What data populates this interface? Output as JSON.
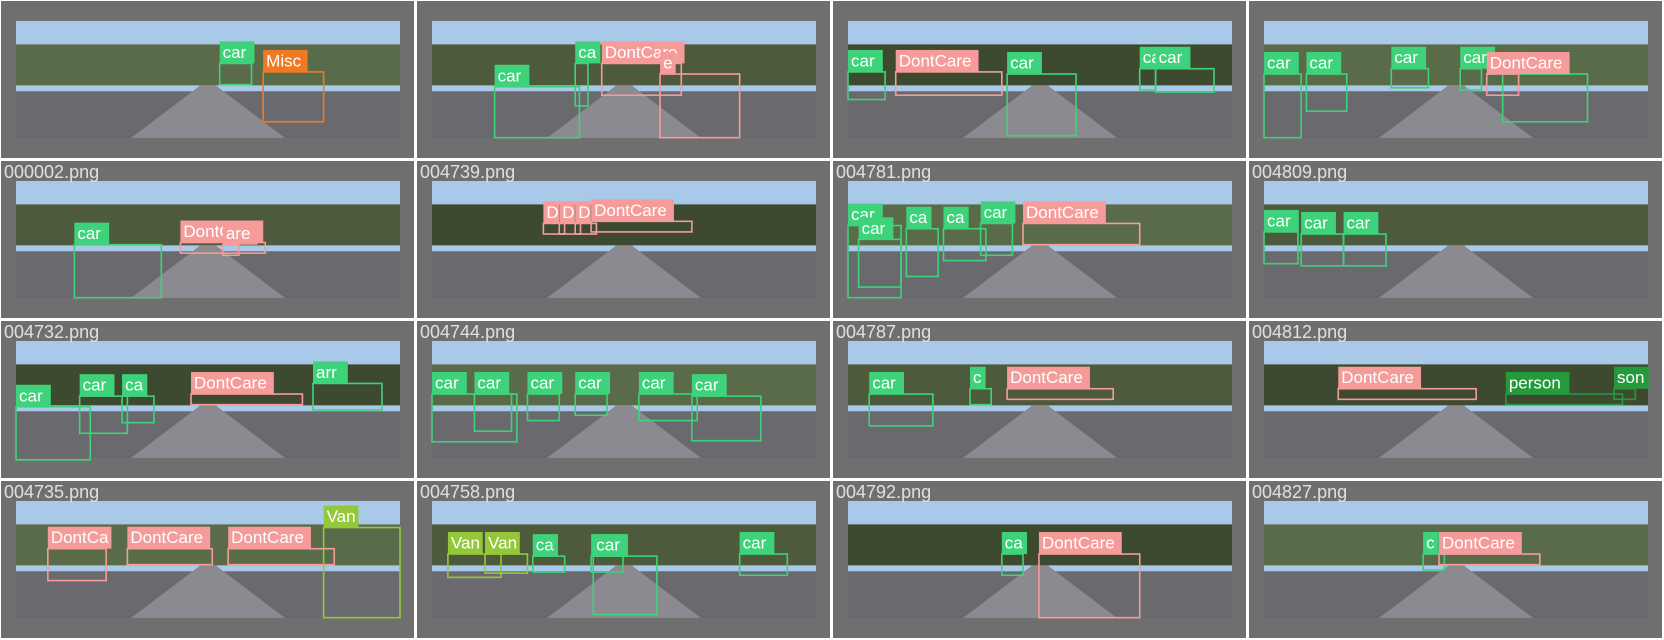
{
  "cells": [
    {
      "labels": [
        {
          "text": "car",
          "color": "#3ed37a"
        },
        {
          "text": "Misc",
          "color": "#f07a24"
        }
      ]
    },
    {
      "labels": [
        {
          "text": "car",
          "color": "#3ed37a"
        },
        {
          "text": "ca",
          "color": "#3ed37a"
        },
        {
          "text": "DontCare",
          "color": "#f59c9a"
        },
        {
          "text": "e",
          "color": "#f59c9a"
        }
      ]
    },
    {
      "labels": [
        {
          "text": "car",
          "color": "#3ed37a"
        },
        {
          "text": "DontCare",
          "color": "#f59c9a"
        },
        {
          "text": "car",
          "color": "#3ed37a"
        },
        {
          "text": "ca",
          "color": "#3ed37a"
        },
        {
          "text": "car",
          "color": "#3ed37a"
        }
      ]
    },
    {
      "labels": [
        {
          "text": "car",
          "color": "#3ed37a"
        },
        {
          "text": "car",
          "color": "#3ed37a"
        },
        {
          "text": "car",
          "color": "#3ed37a"
        },
        {
          "text": "car",
          "color": "#3ed37a"
        },
        {
          "text": "ca",
          "color": "#3ed37a"
        },
        {
          "text": "DontCare",
          "color": "#f59c9a"
        }
      ]
    },
    {
      "filename": "000002.png",
      "labels": [
        {
          "text": "car",
          "color": "#3ed37a"
        },
        {
          "text": "DontCare",
          "color": "#f59c9a"
        },
        {
          "text": "are",
          "color": "#f59c9a"
        }
      ]
    },
    {
      "filename": "004739.png",
      "labels": [
        {
          "text": "D",
          "color": "#f59c9a"
        },
        {
          "text": "D",
          "color": "#f59c9a"
        },
        {
          "text": "D",
          "color": "#f59c9a"
        },
        {
          "text": "DontCare",
          "color": "#f59c9a"
        }
      ]
    },
    {
      "filename": "004781.png",
      "labels": [
        {
          "text": "car",
          "color": "#3ed37a"
        },
        {
          "text": "car",
          "color": "#3ed37a"
        },
        {
          "text": "ca",
          "color": "#3ed37a"
        },
        {
          "text": "ca",
          "color": "#3ed37a"
        },
        {
          "text": "car",
          "color": "#3ed37a"
        },
        {
          "text": "DontCare",
          "color": "#f59c9a"
        }
      ]
    },
    {
      "filename": "004809.png",
      "labels": [
        {
          "text": "car",
          "color": "#3ed37a"
        },
        {
          "text": "car",
          "color": "#3ed37a"
        },
        {
          "text": "car",
          "color": "#3ed37a"
        }
      ]
    },
    {
      "filename": "004732.png",
      "labels": [
        {
          "text": "car",
          "color": "#3ed37a"
        },
        {
          "text": "car",
          "color": "#3ed37a"
        },
        {
          "text": "ca",
          "color": "#3ed37a"
        },
        {
          "text": "DontCare",
          "color": "#f59c9a"
        },
        {
          "text": "arr",
          "color": "#3ed37a"
        }
      ]
    },
    {
      "filename": "004744.png",
      "labels": [
        {
          "text": "car",
          "color": "#3ed37a"
        },
        {
          "text": "car",
          "color": "#3ed37a"
        },
        {
          "text": "car",
          "color": "#3ed37a"
        },
        {
          "text": "car",
          "color": "#3ed37a"
        },
        {
          "text": "car",
          "color": "#3ed37a"
        },
        {
          "text": "car",
          "color": "#3ed37a"
        }
      ]
    },
    {
      "filename": "004787.png",
      "labels": [
        {
          "text": "car",
          "color": "#3ed37a"
        },
        {
          "text": "c",
          "color": "#3ed37a"
        },
        {
          "text": "DontCare",
          "color": "#f59c9a"
        }
      ]
    },
    {
      "filename": "004812.png",
      "labels": [
        {
          "text": "DontCare",
          "color": "#f59c9a"
        },
        {
          "text": "person",
          "color": "#249a3c"
        },
        {
          "text": "son",
          "color": "#249a3c"
        }
      ]
    },
    {
      "filename": "004735.png",
      "labels": [
        {
          "text": "DontCa",
          "color": "#f59c9a"
        },
        {
          "text": "DontCare",
          "color": "#f59c9a"
        },
        {
          "text": "DontCare",
          "color": "#f59c9a"
        },
        {
          "text": "Van",
          "color": "#94c83a"
        }
      ]
    },
    {
      "filename": "004758.png",
      "labels": [
        {
          "text": "Van",
          "color": "#94c83a"
        },
        {
          "text": "Van",
          "color": "#94c83a"
        },
        {
          "text": "ca",
          "color": "#3ed37a"
        },
        {
          "text": "car",
          "color": "#3ed37a"
        },
        {
          "text": "car",
          "color": "#3ed37a"
        },
        {
          "text": "car",
          "color": "#3ed37a"
        }
      ]
    },
    {
      "filename": "004792.png",
      "labels": [
        {
          "text": "ca",
          "color": "#3ed37a"
        },
        {
          "text": "DontCare",
          "color": "#f59c9a"
        }
      ]
    },
    {
      "filename": "004827.png",
      "labels": [
        {
          "text": "c",
          "color": "#3ed37a"
        },
        {
          "text": "DontCare",
          "color": "#f59c9a"
        }
      ]
    }
  ]
}
